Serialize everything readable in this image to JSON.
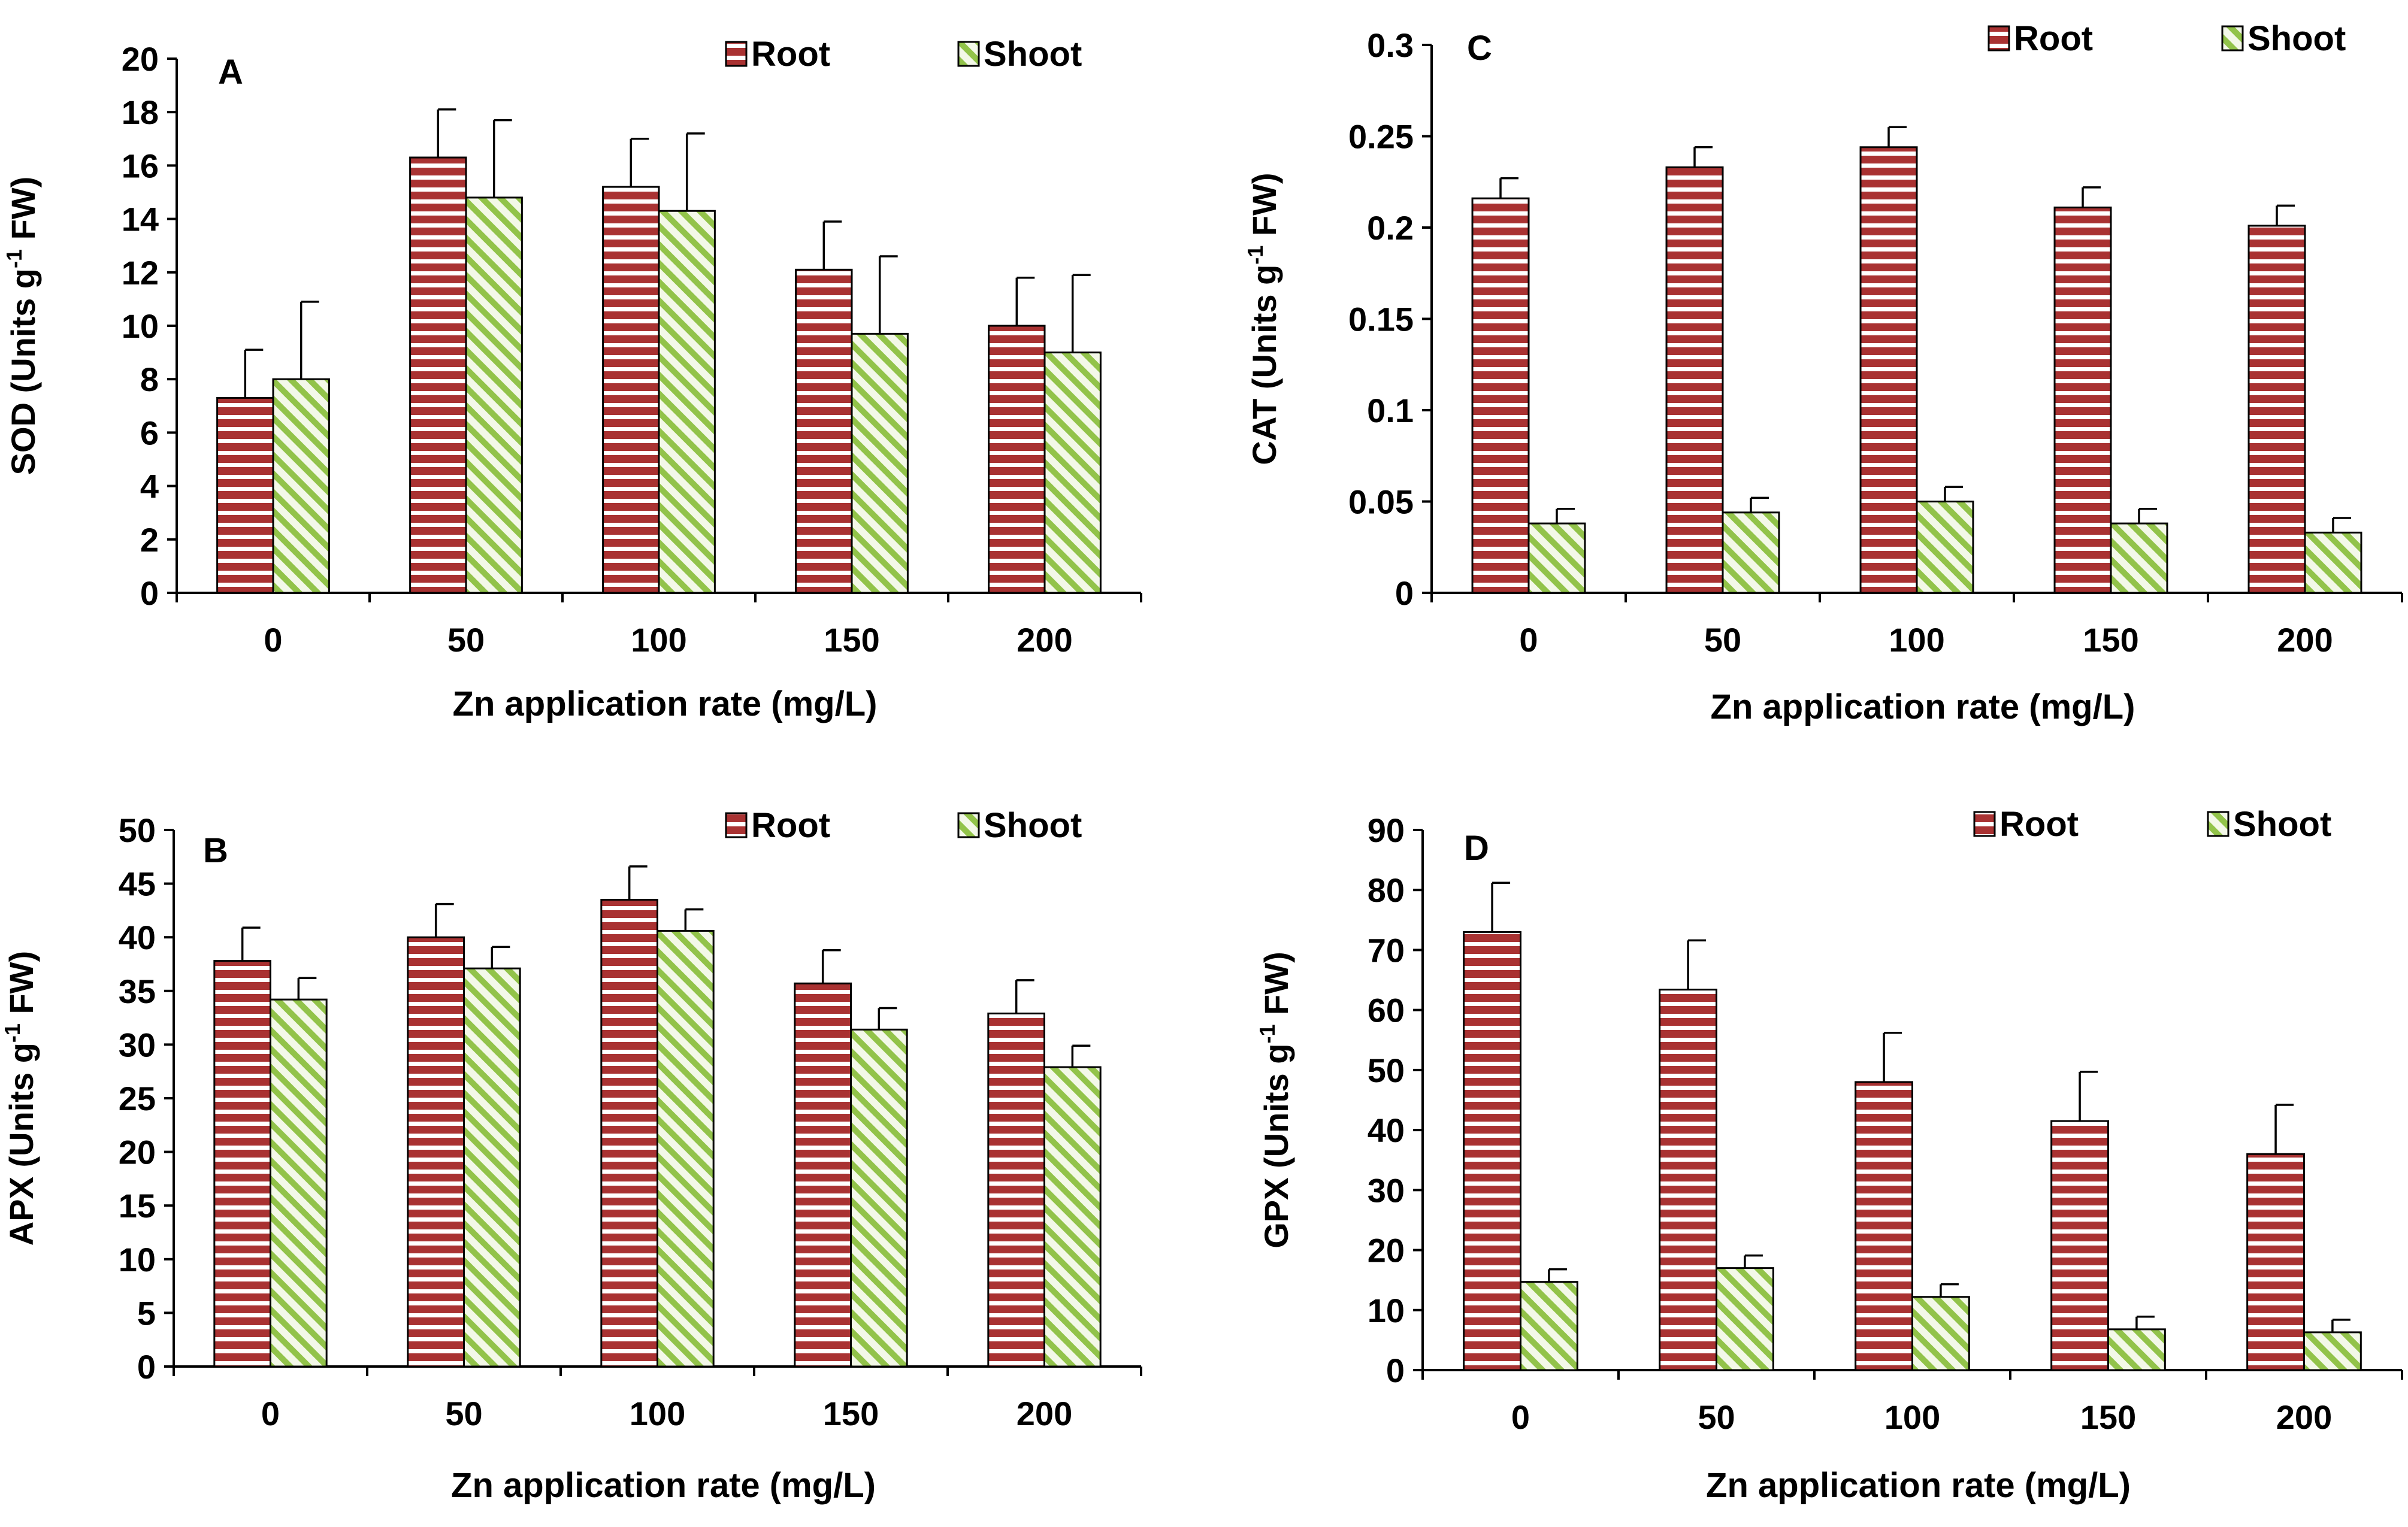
{
  "figure": {
    "description_label": "Antioxidant enzyme activities in root and shoot"
  },
  "colors": {
    "root_fill": "#a93232",
    "root_stripe": "#ffffff",
    "shoot_fill": "#92c34a",
    "shoot_bg": "#f3f8e8",
    "axis": "#000000"
  },
  "chart_data": [
    {
      "panel": "A",
      "type": "bar",
      "categories": [
        "0",
        "50",
        "100",
        "150",
        "200"
      ],
      "series": [
        {
          "name": "Root",
          "values": [
            7.3,
            16.3,
            15.2,
            12.1,
            10.0
          ],
          "errors": [
            1.8,
            1.8,
            1.8,
            1.8,
            1.8
          ]
        },
        {
          "name": "Shoot",
          "values": [
            8.0,
            14.8,
            14.3,
            9.7,
            9.0
          ],
          "errors": [
            2.9,
            2.9,
            2.9,
            2.9,
            2.9
          ]
        }
      ],
      "ylim": [
        0,
        20
      ],
      "yticks": [
        "0",
        "2",
        "4",
        "6",
        "8",
        "10",
        "12",
        "14",
        "16",
        "18",
        "20"
      ],
      "ylabel_main": "SOD (Units g",
      "ylabel_sup": "-1",
      "ylabel_tail": " FW)",
      "xlabel": "Zn application rate (mg/L)",
      "legend_position": "top-right"
    },
    {
      "panel": "C",
      "type": "bar",
      "categories": [
        "0",
        "50",
        "100",
        "150",
        "200"
      ],
      "series": [
        {
          "name": "Root",
          "values": [
            0.216,
            0.233,
            0.244,
            0.211,
            0.201
          ],
          "errors": [
            0.011,
            0.011,
            0.011,
            0.011,
            0.011
          ]
        },
        {
          "name": "Shoot",
          "values": [
            0.038,
            0.044,
            0.05,
            0.038,
            0.033
          ],
          "errors": [
            0.008,
            0.008,
            0.008,
            0.008,
            0.008
          ]
        }
      ],
      "ylim": [
        0,
        0.3
      ],
      "yticks": [
        "0",
        "0.05",
        "0.1",
        "0.15",
        "0.2",
        "0.25",
        "0.3"
      ],
      "ylabel_main": "CAT (Units g",
      "ylabel_sup": "-1",
      "ylabel_tail": " FW)",
      "xlabel": "Zn application rate (mg/L)",
      "legend_position": "top-right"
    },
    {
      "panel": "B",
      "type": "bar",
      "categories": [
        "0",
        "50",
        "100",
        "150",
        "200"
      ],
      "series": [
        {
          "name": "Root",
          "values": [
            37.8,
            40.0,
            43.5,
            35.7,
            32.9
          ],
          "errors": [
            3.1,
            3.1,
            3.1,
            3.1,
            3.1
          ]
        },
        {
          "name": "Shoot",
          "values": [
            34.2,
            37.1,
            40.6,
            31.4,
            27.9
          ],
          "errors": [
            2.0,
            2.0,
            2.0,
            2.0,
            2.0
          ]
        }
      ],
      "ylim": [
        0,
        50
      ],
      "yticks": [
        "0",
        "5",
        "10",
        "15",
        "20",
        "25",
        "30",
        "35",
        "40",
        "45",
        "50"
      ],
      "ylabel_main": "APX (Units g",
      "ylabel_sup": "-1",
      "ylabel_tail": " FW)",
      "xlabel": "Zn application rate (mg/L)",
      "legend_position": "top-right"
    },
    {
      "panel": "D",
      "type": "bar",
      "categories": [
        "0",
        "50",
        "100",
        "150",
        "200"
      ],
      "series": [
        {
          "name": "Root",
          "values": [
            73.0,
            63.4,
            48.0,
            41.5,
            36.0
          ],
          "errors": [
            8.2,
            8.2,
            8.2,
            8.2,
            8.2
          ]
        },
        {
          "name": "Shoot",
          "values": [
            14.7,
            17.0,
            12.2,
            6.8,
            6.3
          ],
          "errors": [
            2.1,
            2.1,
            2.1,
            2.1,
            2.1
          ]
        }
      ],
      "ylim": [
        0,
        90
      ],
      "yticks": [
        "0",
        "10",
        "20",
        "30",
        "40",
        "50",
        "60",
        "70",
        "80",
        "90"
      ],
      "ylabel_main": "GPX (Units g",
      "ylabel_sup": "-1",
      "ylabel_tail": " FW)",
      "xlabel": "Zn application rate (mg/L)",
      "legend_position": "top-right"
    }
  ]
}
